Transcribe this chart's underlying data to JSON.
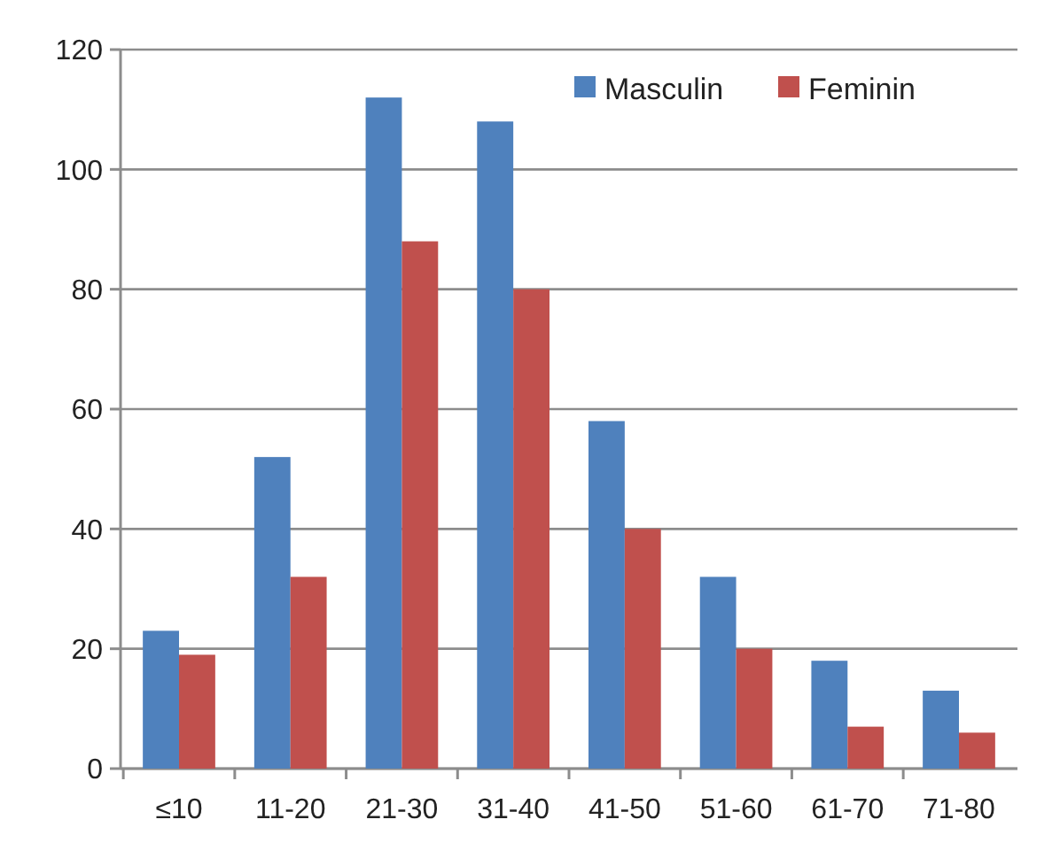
{
  "chart_data": {
    "type": "bar",
    "categories": [
      "≤10",
      "11-20",
      "21-30",
      "31-40",
      "41-50",
      "51-60",
      "61-70",
      "71-80"
    ],
    "series": [
      {
        "name": "Masculin",
        "color": "#4f81bd",
        "values": [
          23,
          52,
          112,
          108,
          58,
          32,
          18,
          13
        ]
      },
      {
        "name": "Feminin",
        "color": "#c0504d",
        "values": [
          19,
          32,
          88,
          80,
          40,
          20,
          7,
          6
        ]
      }
    ],
    "ylim": [
      0,
      120
    ],
    "yticks": [
      0,
      20,
      40,
      60,
      80,
      100,
      120
    ],
    "grid": "y",
    "legend": "top right"
  }
}
